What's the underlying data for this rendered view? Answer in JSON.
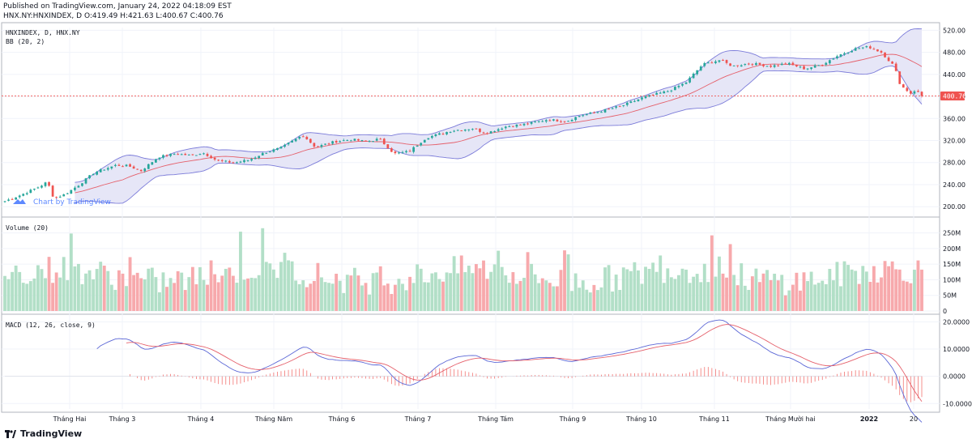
{
  "header": {
    "published_line": "Published on TradingView.com, January 24, 2022 04:18:09 EST",
    "ohlc_line": "HNX.NY:HNXINDEX, D O:419.49 H:421.63 L:400.67 C:400.76"
  },
  "footer": {
    "brand": "TradingView"
  },
  "watermark": "Chart by TradingView",
  "colors": {
    "up": "#26a69a",
    "down": "#ef5350",
    "volume_up": "#b2dfc7",
    "volume_down": "#f7a9ac",
    "bb_band": "#7b7bd9",
    "bb_fill": "#e6e6f7",
    "bb_basis": "#e5606b",
    "macd": "#5b67d6",
    "signal": "#e5606b",
    "last_price": "#ef5350"
  },
  "chart_data": [
    {
      "type": "candlestick",
      "title": "HNXINDEX, D, HNX.NY",
      "indicator_label": "BB (20, 2)",
      "last_price_label": "400.76",
      "ylim": [
        190,
        525
      ],
      "y_ticks": [
        "520.00",
        "480.00",
        "440.00",
        "400.00",
        "360.00",
        "320.00",
        "280.00",
        "240.00",
        "200.00"
      ],
      "x_tick_labels": [
        "Tháng Hai",
        "Tháng 3",
        "Tháng 4",
        "Tháng Năm",
        "Tháng 6",
        "Tháng 7",
        "Tháng Tám",
        "Tháng 9",
        "Tháng 10",
        "Tháng 11",
        "Tháng Mười hai",
        "2022",
        "20"
      ],
      "close_path": [
        [
          0,
          210
        ],
        [
          8,
          222
        ],
        [
          16,
          236
        ],
        [
          20,
          245
        ],
        [
          23,
          215
        ],
        [
          28,
          222
        ],
        [
          35,
          240
        ],
        [
          42,
          262
        ],
        [
          52,
          275
        ],
        [
          58,
          274
        ],
        [
          64,
          265
        ],
        [
          72,
          290
        ],
        [
          80,
          296
        ],
        [
          88,
          293
        ],
        [
          93,
          298
        ],
        [
          100,
          283
        ],
        [
          108,
          280
        ],
        [
          115,
          285
        ],
        [
          122,
          298
        ],
        [
          130,
          307
        ],
        [
          140,
          330
        ],
        [
          146,
          308
        ],
        [
          155,
          318
        ],
        [
          163,
          322
        ],
        [
          170,
          318
        ],
        [
          176,
          323
        ],
        [
          183,
          296
        ],
        [
          190,
          300
        ],
        [
          198,
          325
        ],
        [
          210,
          338
        ],
        [
          220,
          342
        ],
        [
          226,
          333
        ],
        [
          235,
          345
        ],
        [
          245,
          350
        ],
        [
          255,
          358
        ],
        [
          264,
          355
        ],
        [
          270,
          365
        ],
        [
          280,
          373
        ],
        [
          290,
          383
        ],
        [
          300,
          398
        ],
        [
          312,
          410
        ],
        [
          320,
          425
        ],
        [
          328,
          458
        ],
        [
          336,
          466
        ],
        [
          342,
          455
        ],
        [
          350,
          460
        ],
        [
          360,
          455
        ],
        [
          368,
          460
        ],
        [
          376,
          450
        ],
        [
          384,
          458
        ],
        [
          392,
          475
        ],
        [
          400,
          487
        ],
        [
          406,
          490
        ],
        [
          412,
          480
        ],
        [
          418,
          455
        ],
        [
          421,
          420
        ],
        [
          426,
          405
        ],
        [
          428,
          412
        ],
        [
          431,
          401
        ]
      ],
      "n_bars": 250
    },
    {
      "type": "bar",
      "title": "Volume (20)",
      "ylim": [
        0,
        280
      ],
      "y_ticks": [
        "250M",
        "200M",
        "150M",
        "100M",
        "50M",
        "0"
      ]
    },
    {
      "type": "line",
      "title": "MACD (12, 26, close, 9)",
      "ylim": [
        -12,
        21
      ],
      "y_ticks": [
        "20.0000",
        "10.0000",
        "0.0000",
        "-10.0000"
      ]
    }
  ]
}
